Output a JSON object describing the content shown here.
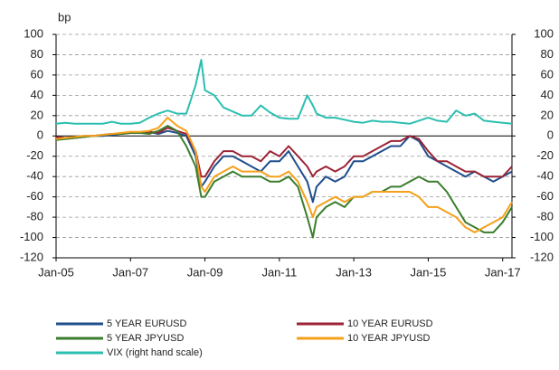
{
  "chart_data": {
    "type": "line",
    "y_label": "bp",
    "x": [
      2005,
      2005.25,
      2005.5,
      2005.75,
      2006,
      2006.25,
      2006.5,
      2006.75,
      2007,
      2007.25,
      2007.5,
      2007.75,
      2008,
      2008.25,
      2008.5,
      2008.75,
      2008.9,
      2009,
      2009.25,
      2009.5,
      2009.75,
      2010,
      2010.25,
      2010.5,
      2010.75,
      2011,
      2011.25,
      2011.5,
      2011.75,
      2011.9,
      2012,
      2012.25,
      2012.5,
      2012.75,
      2013,
      2013.25,
      2013.5,
      2013.75,
      2014,
      2014.25,
      2014.5,
      2014.75,
      2015,
      2015.25,
      2015.5,
      2015.75,
      2016,
      2016.25,
      2016.5,
      2016.75,
      2017,
      2017.25
    ],
    "xlim": [
      2005,
      2017.25
    ],
    "xticks": [
      {
        "value": 2005,
        "label": "Jan-05"
      },
      {
        "value": 2007,
        "label": "Jan-07"
      },
      {
        "value": 2009,
        "label": "Jan-09"
      },
      {
        "value": 2011,
        "label": "Jan-11"
      },
      {
        "value": 2013,
        "label": "Jan-13"
      },
      {
        "value": 2015,
        "label": "Jan-15"
      },
      {
        "value": 2017,
        "label": "Jan-17"
      }
    ],
    "ylim": [
      -120,
      100
    ],
    "yticks": [
      -120,
      -100,
      -80,
      -60,
      -40,
      -20,
      0,
      20,
      40,
      60,
      80,
      100
    ],
    "y2lim": [
      -120,
      100
    ],
    "y2ticks": [
      -120,
      -100,
      -80,
      -60,
      -40,
      -20,
      0,
      20,
      40,
      60,
      80,
      100
    ],
    "grid": true,
    "series": [
      {
        "name": "5 YEAR EURUSD",
        "color": "#1f4e8c",
        "values": [
          -2,
          -3,
          -2,
          -1,
          0,
          0,
          1,
          2,
          3,
          3,
          4,
          2,
          5,
          3,
          0,
          -20,
          -50,
          -45,
          -30,
          -20,
          -20,
          -25,
          -30,
          -35,
          -25,
          -25,
          -15,
          -30,
          -45,
          -65,
          -50,
          -40,
          -45,
          -40,
          -25,
          -25,
          -20,
          -15,
          -10,
          -10,
          0,
          -5,
          -20,
          -25,
          -30,
          -35,
          -40,
          -35,
          -40,
          -45,
          -40,
          -35
        ]
      },
      {
        "name": "10 YEAR EURUSD",
        "color": "#9b2335",
        "values": [
          -1,
          -2,
          -1,
          0,
          0,
          1,
          2,
          2,
          3,
          3,
          4,
          3,
          8,
          5,
          2,
          -15,
          -40,
          -40,
          -25,
          -15,
          -15,
          -20,
          -20,
          -25,
          -15,
          -20,
          -10,
          -20,
          -30,
          -40,
          -35,
          -30,
          -35,
          -30,
          -20,
          -20,
          -15,
          -10,
          -5,
          -5,
          0,
          -3,
          -15,
          -25,
          -25,
          -30,
          -35,
          -35,
          -40,
          -40,
          -40,
          -30
        ]
      },
      {
        "name": "5 YEAR JPYUSD",
        "color": "#3a7d2c",
        "values": [
          -4,
          -3,
          -2,
          -1,
          0,
          1,
          2,
          2,
          3,
          3,
          2,
          5,
          10,
          5,
          -10,
          -30,
          -60,
          -60,
          -45,
          -40,
          -35,
          -40,
          -40,
          -40,
          -45,
          -45,
          -40,
          -50,
          -80,
          -100,
          -80,
          -70,
          -65,
          -70,
          -60,
          -60,
          -55,
          -55,
          -50,
          -50,
          -45,
          -40,
          -45,
          -45,
          -55,
          -70,
          -85,
          -90,
          -95,
          -95,
          -85,
          -70
        ]
      },
      {
        "name": "10 YEAR JPYUSD",
        "color": "#f5a01a",
        "values": [
          -3,
          -2,
          -1,
          0,
          0,
          1,
          2,
          3,
          4,
          4,
          5,
          8,
          18,
          10,
          5,
          -15,
          -50,
          -55,
          -40,
          -35,
          -30,
          -35,
          -35,
          -35,
          -40,
          -40,
          -35,
          -45,
          -65,
          -80,
          -70,
          -65,
          -60,
          -65,
          -60,
          -60,
          -55,
          -55,
          -55,
          -55,
          -55,
          -60,
          -70,
          -70,
          -75,
          -80,
          -90,
          -95,
          -90,
          -85,
          -80,
          -65
        ]
      },
      {
        "name": "VIX (right hand scale)",
        "color": "#2bbfb0",
        "axis": "y2",
        "values": [
          12,
          13,
          12,
          12,
          12,
          12,
          14,
          12,
          12,
          13,
          18,
          22,
          25,
          22,
          22,
          50,
          75,
          45,
          40,
          28,
          24,
          20,
          20,
          30,
          23,
          18,
          17,
          17,
          40,
          30,
          22,
          18,
          18,
          16,
          14,
          13,
          15,
          14,
          14,
          13,
          12,
          15,
          18,
          15,
          14,
          25,
          20,
          22,
          15,
          14,
          13,
          12
        ]
      }
    ]
  }
}
